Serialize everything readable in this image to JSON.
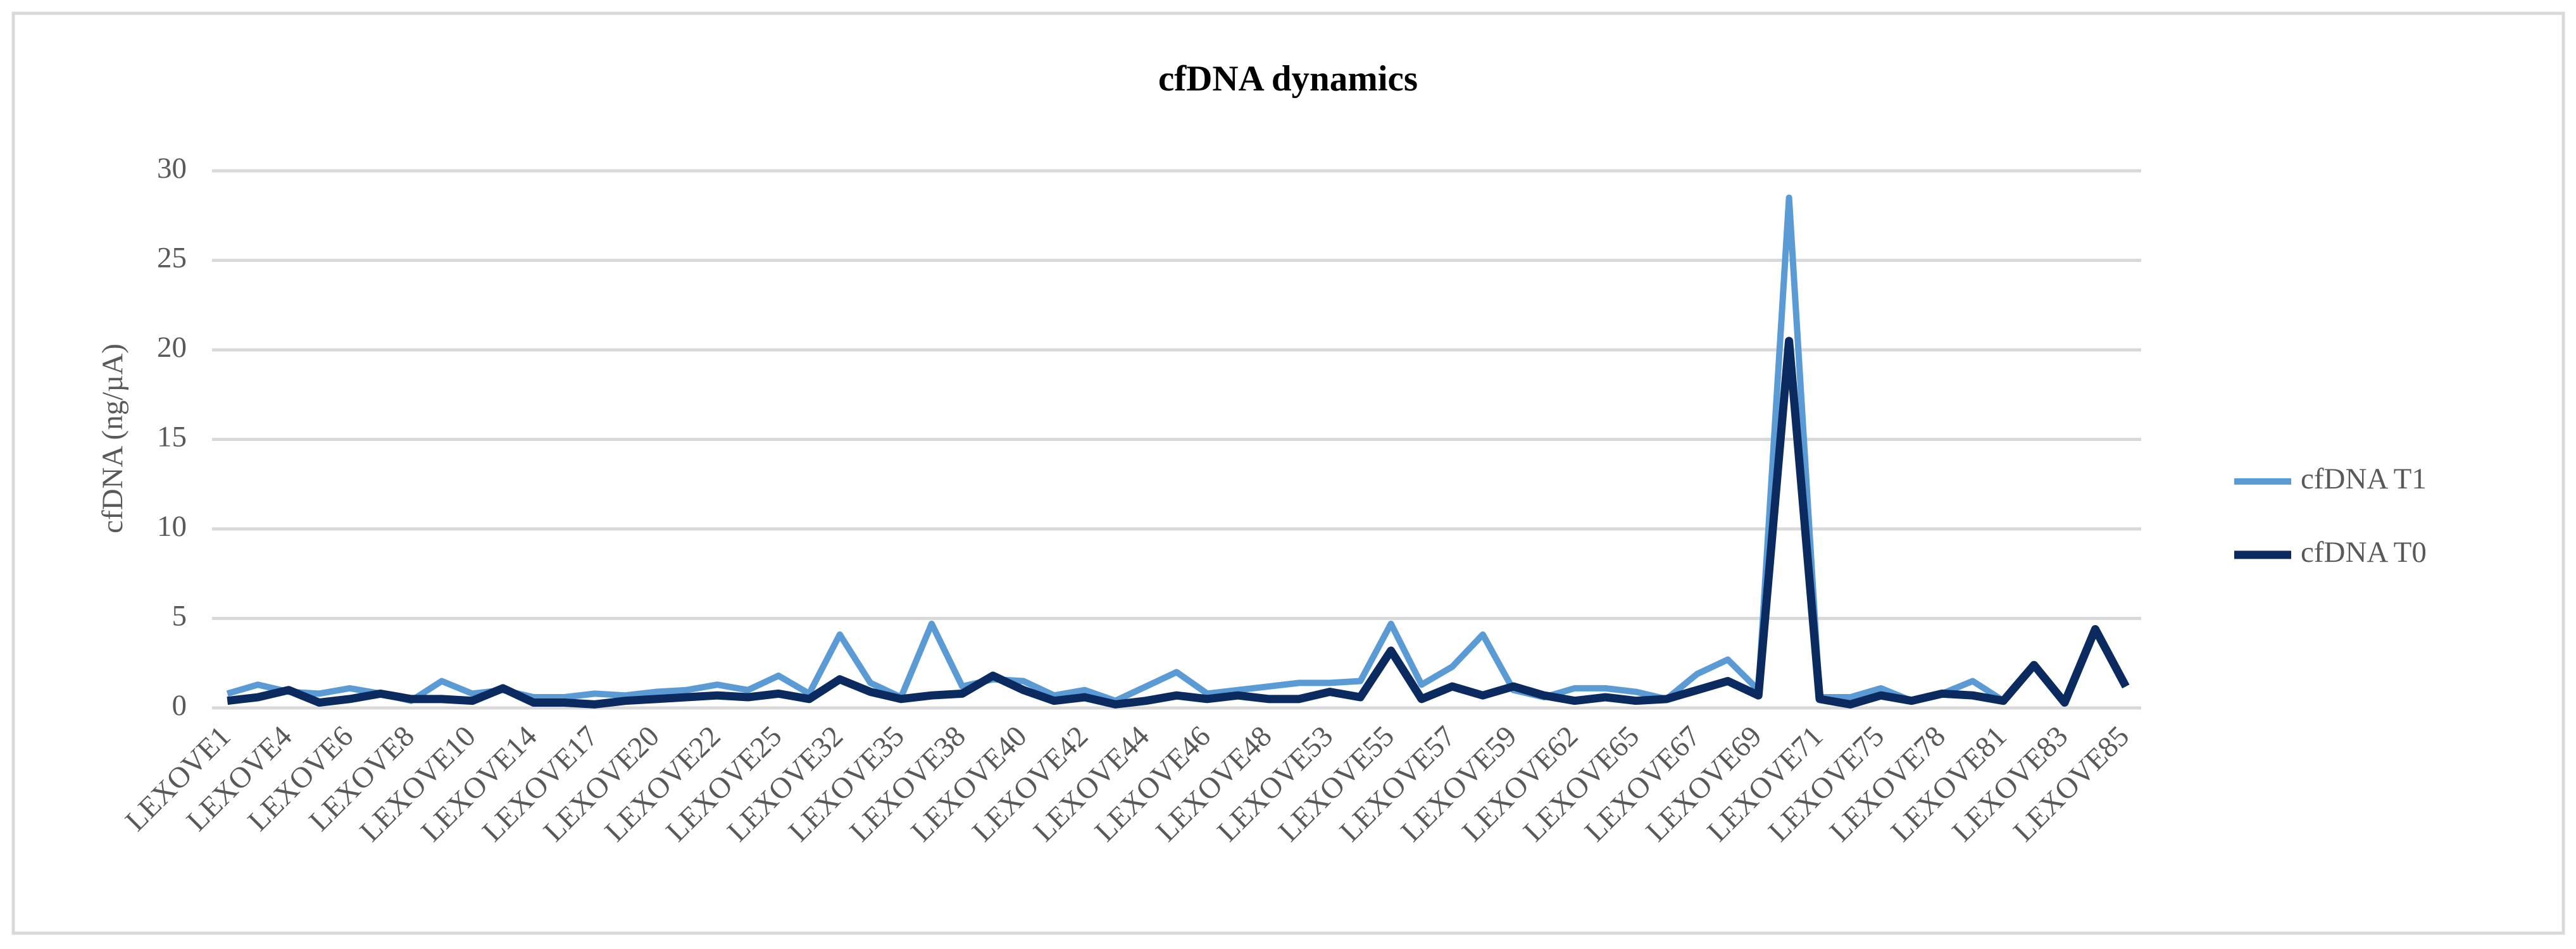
{
  "chart_data": {
    "type": "line",
    "title": "cfDNA dynamics",
    "y_label": "cfDNA (ng/µA)",
    "categories": [
      "LEXOVE1",
      null,
      "LEXOVE4",
      null,
      "LEXOVE6",
      null,
      "LEXOVE8",
      null,
      "LEXOVE10",
      null,
      "LEXOVE14",
      null,
      "LEXOVE17",
      null,
      "LEXOVE20",
      null,
      "LEXOVE22",
      null,
      "LEXOVE25",
      null,
      "LEXOVE32",
      null,
      "LEXOVE35",
      null,
      "LEXOVE38",
      null,
      "LEXOVE40",
      null,
      "LEXOVE42",
      null,
      "LEXOVE44",
      null,
      "LEXOVE46",
      null,
      "LEXOVE48",
      null,
      "LEXOVE53",
      null,
      "LEXOVE55",
      null,
      "LEXOVE57",
      null,
      "LEXOVE59",
      null,
      "LEXOVE62",
      null,
      "LEXOVE65",
      null,
      "LEXOVE67",
      null,
      "LEXOVE69",
      null,
      "LEXOVE71",
      null,
      "LEXOVE75",
      null,
      "LEXOVE78",
      null,
      "LEXOVE81",
      null,
      "LEXOVE83",
      null,
      "LEXOVE85"
    ],
    "series": [
      {
        "name": "cfDNA T1",
        "color": "#5b9bd5",
        "values": [
          0.8,
          1.3,
          0.9,
          0.8,
          1.1,
          0.8,
          0.4,
          1.5,
          0.8,
          1.0,
          0.6,
          0.6,
          0.8,
          0.7,
          0.9,
          1.0,
          1.3,
          1.0,
          1.8,
          0.8,
          4.1,
          1.4,
          0.6,
          4.7,
          1.2,
          1.6,
          1.5,
          0.7,
          1.0,
          0.4,
          1.2,
          2.0,
          0.8,
          1.0,
          1.2,
          1.4,
          1.4,
          1.5,
          4.7,
          1.3,
          2.3,
          4.1,
          1.0,
          0.6,
          1.1,
          1.1,
          0.9,
          0.5,
          1.9,
          2.7,
          1.0,
          28.5,
          0.6,
          0.6,
          1.1,
          0.4,
          0.8,
          1.5,
          0.4,
          2.4,
          0.3,
          4.4,
          1.2
        ]
      },
      {
        "name": "cfDNA T0",
        "color": "#0b2a60",
        "values": [
          0.4,
          0.6,
          1.0,
          0.3,
          0.5,
          0.8,
          0.5,
          0.5,
          0.4,
          1.1,
          0.3,
          0.3,
          0.2,
          0.4,
          0.5,
          0.6,
          0.7,
          0.6,
          0.8,
          0.5,
          1.6,
          0.9,
          0.5,
          0.7,
          0.8,
          1.8,
          1.0,
          0.4,
          0.6,
          0.2,
          0.4,
          0.7,
          0.5,
          0.7,
          0.5,
          0.5,
          0.9,
          0.6,
          3.2,
          0.5,
          1.2,
          0.7,
          1.2,
          0.7,
          0.4,
          0.6,
          0.4,
          0.5,
          1.0,
          1.5,
          0.7,
          20.5,
          0.5,
          0.2,
          0.7,
          0.4,
          0.8,
          0.7,
          0.4,
          2.4,
          0.3,
          4.4,
          1.2
        ]
      }
    ],
    "ylim": [
      0,
      30
    ],
    "yticks": [
      0,
      5,
      10,
      15,
      20,
      25,
      30
    ],
    "grid": true,
    "legend": "right"
  }
}
